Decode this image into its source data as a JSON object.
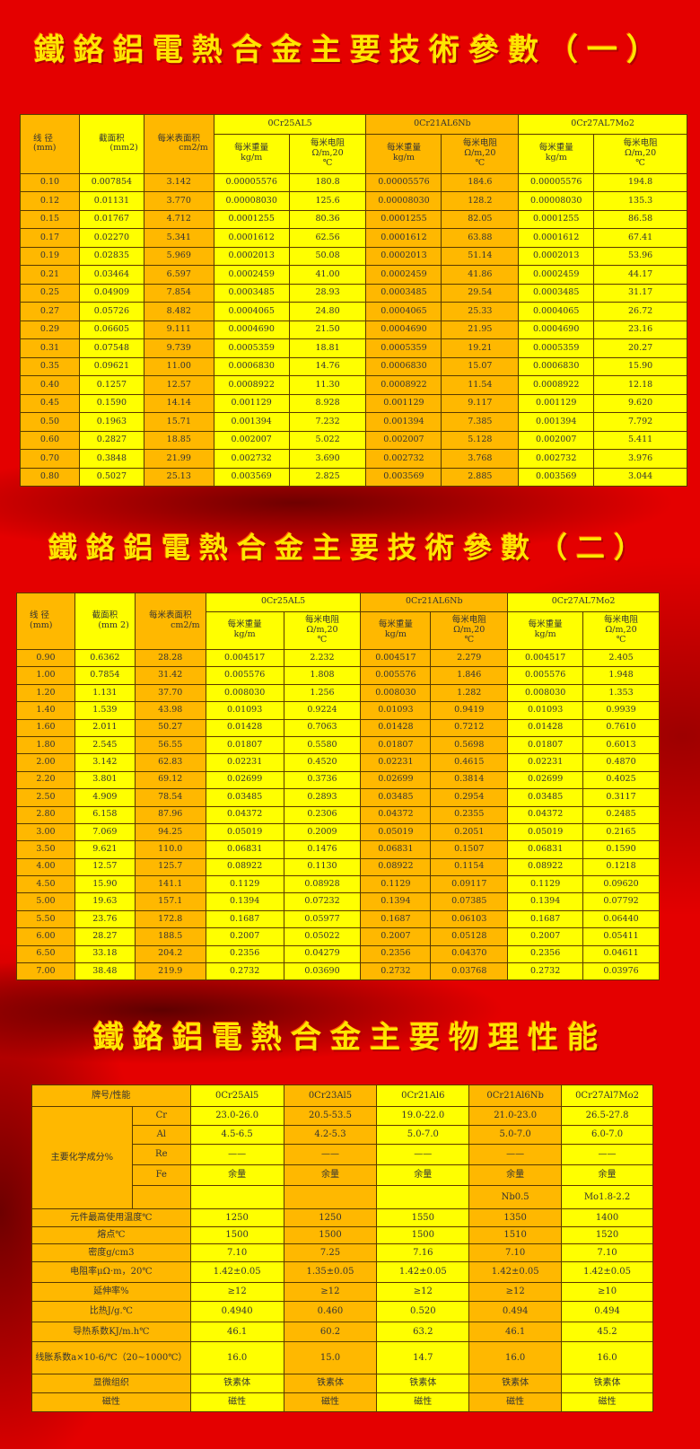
{
  "titles": [
    "鐵鉻鋁電熱合金主要技術參數（一）",
    "鐵鉻鋁電熱合金主要技術參數（二）",
    "鐵鉻鋁電熱合金主要物理性能"
  ],
  "colors": {
    "background": "#e40000",
    "title": "#ffe600",
    "cell_orange": "#ffb800",
    "cell_yellow": "#ffff00"
  },
  "table1": {
    "headers": {
      "diameter": "线 径",
      "diameter_unit": "(mm)",
      "area": "截面积",
      "area_unit": "(mm2)",
      "surface": "每米表面积",
      "surface_unit": "cm2/m",
      "alloys": [
        "0Cr25AL5",
        "0Cr21AL6Nb",
        "0Cr27AL7Mo2"
      ],
      "weight": "每米重量",
      "weight_unit": "kg/m",
      "resist": "每米电阻",
      "resist_unit": "Ω/m,20",
      "resist_unit2": "℃"
    },
    "rows": [
      [
        "0.10",
        "0.007854",
        "3.142",
        "0.00005576",
        "180.8",
        "0.00005576",
        "184.6",
        "0.00005576",
        "194.8"
      ],
      [
        "0.12",
        "0.01131",
        "3.770",
        "0.00008030",
        "125.6",
        "0.00008030",
        "128.2",
        "0.00008030",
        "135.3"
      ],
      [
        "0.15",
        "0.01767",
        "4.712",
        "0.0001255",
        "80.36",
        "0.0001255",
        "82.05",
        "0.0001255",
        "86.58"
      ],
      [
        "0.17",
        "0.02270",
        "5.341",
        "0.0001612",
        "62.56",
        "0.0001612",
        "63.88",
        "0.0001612",
        "67.41"
      ],
      [
        "0.19",
        "0.02835",
        "5.969",
        "0.0002013",
        "50.08",
        "0.0002013",
        "51.14",
        "0.0002013",
        "53.96"
      ],
      [
        "0.21",
        "0.03464",
        "6.597",
        "0.0002459",
        "41.00",
        "0.0002459",
        "41.86",
        "0.0002459",
        "44.17"
      ],
      [
        "0.25",
        "0.04909",
        "7.854",
        "0.0003485",
        "28.93",
        "0.0003485",
        "29.54",
        "0.0003485",
        "31.17"
      ],
      [
        "0.27",
        "0.05726",
        "8.482",
        "0.0004065",
        "24.80",
        "0.0004065",
        "25.33",
        "0.0004065",
        "26.72"
      ],
      [
        "0.29",
        "0.06605",
        "9.111",
        "0.0004690",
        "21.50",
        "0.0004690",
        "21.95",
        "0.0004690",
        "23.16"
      ],
      [
        "0.31",
        "0.07548",
        "9.739",
        "0.0005359",
        "18.81",
        "0.0005359",
        "19.21",
        "0.0005359",
        "20.27"
      ],
      [
        "0.35",
        "0.09621",
        "11.00",
        "0.0006830",
        "14.76",
        "0.0006830",
        "15.07",
        "0.0006830",
        "15.90"
      ],
      [
        "0.40",
        "0.1257",
        "12.57",
        "0.0008922",
        "11.30",
        "0.0008922",
        "11.54",
        "0.0008922",
        "12.18"
      ],
      [
        "0.45",
        "0.1590",
        "14.14",
        "0.001129",
        "8.928",
        "0.001129",
        "9.117",
        "0.001129",
        "9.620"
      ],
      [
        "0.50",
        "0.1963",
        "15.71",
        "0.001394",
        "7.232",
        "0.001394",
        "7.385",
        "0.001394",
        "7.792"
      ],
      [
        "0.60",
        "0.2827",
        "18.85",
        "0.002007",
        "5.022",
        "0.002007",
        "5.128",
        "0.002007",
        "5.411"
      ],
      [
        "0.70",
        "0.3848",
        "21.99",
        "0.002732",
        "3.690",
        "0.002732",
        "3.768",
        "0.002732",
        "3.976"
      ],
      [
        "0.80",
        "0.5027",
        "25.13",
        "0.003569",
        "2.825",
        "0.003569",
        "2.885",
        "0.003569",
        "3.044"
      ]
    ]
  },
  "table2": {
    "headers": {
      "diameter": "线 径",
      "diameter_unit": "(mm)",
      "area": "截面积",
      "area_unit": "(mm 2)",
      "surface": "每米表面积",
      "surface_unit": "cm2/m",
      "alloys": [
        "0Cr25AL5",
        "0Cr21AL6Nb",
        "0Cr27AL7Mo2"
      ],
      "weight": "每米重量",
      "weight_unit": "kg/m",
      "resist": "每米电阻",
      "resist_unit": "Ω/m,20",
      "resist_unit2": "℃"
    },
    "rows": [
      [
        "0.90",
        "0.6362",
        "28.28",
        "0.004517",
        "2.232",
        "0.004517",
        "2.279",
        "0.004517",
        "2.405"
      ],
      [
        "1.00",
        "0.7854",
        "31.42",
        "0.005576",
        "1.808",
        "0.005576",
        "1.846",
        "0.005576",
        "1.948"
      ],
      [
        "1.20",
        "1.131",
        "37.70",
        "0.008030",
        "1.256",
        "0.008030",
        "1.282",
        "0.008030",
        "1.353"
      ],
      [
        "1.40",
        "1.539",
        "43.98",
        "0.01093",
        "0.9224",
        "0.01093",
        "0.9419",
        "0.01093",
        "0.9939"
      ],
      [
        "1.60",
        "2.011",
        "50.27",
        "0.01428",
        "0.7063",
        "0.01428",
        "0.7212",
        "0.01428",
        "0.7610"
      ],
      [
        "1.80",
        "2.545",
        "56.55",
        "0.01807",
        "0.5580",
        "0.01807",
        "0.5698",
        "0.01807",
        "0.6013"
      ],
      [
        "2.00",
        "3.142",
        "62.83",
        "0.02231",
        "0.4520",
        "0.02231",
        "0.4615",
        "0.02231",
        "0.4870"
      ],
      [
        "2.20",
        "3.801",
        "69.12",
        "0.02699",
        "0.3736",
        "0.02699",
        "0.3814",
        "0.02699",
        "0.4025"
      ],
      [
        "2.50",
        "4.909",
        "78.54",
        "0.03485",
        "0.2893",
        "0.03485",
        "0.2954",
        "0.03485",
        "0.3117"
      ],
      [
        "2.80",
        "6.158",
        "87.96",
        "0.04372",
        "0.2306",
        "0.04372",
        "0.2355",
        "0.04372",
        "0.2485"
      ],
      [
        "3.00",
        "7.069",
        "94.25",
        "0.05019",
        "0.2009",
        "0.05019",
        "0.2051",
        "0.05019",
        "0.2165"
      ],
      [
        "3.50",
        "9.621",
        "110.0",
        "0.06831",
        "0.1476",
        "0.06831",
        "0.1507",
        "0.06831",
        "0.1590"
      ],
      [
        "4.00",
        "12.57",
        "125.7",
        "0.08922",
        "0.1130",
        "0.08922",
        "0.1154",
        "0.08922",
        "0.1218"
      ],
      [
        "4.50",
        "15.90",
        "141.1",
        "0.1129",
        "0.08928",
        "0.1129",
        "0.09117",
        "0.1129",
        "0.09620"
      ],
      [
        "5.00",
        "19.63",
        "157.1",
        "0.1394",
        "0.07232",
        "0.1394",
        "0.07385",
        "0.1394",
        "0.07792"
      ],
      [
        "5.50",
        "23.76",
        "172.8",
        "0.1687",
        "0.05977",
        "0.1687",
        "0.06103",
        "0.1687",
        "0.06440"
      ],
      [
        "6.00",
        "28.27",
        "188.5",
        "0.2007",
        "0.05022",
        "0.2007",
        "0.05128",
        "0.2007",
        "0.05411"
      ],
      [
        "6.50",
        "33.18",
        "204.2",
        "0.2356",
        "0.04279",
        "0.2356",
        "0.04370",
        "0.2356",
        "0.04611"
      ],
      [
        "7.00",
        "38.48",
        "219.9",
        "0.2732",
        "0.03690",
        "0.2732",
        "0.03768",
        "0.2732",
        "0.03976"
      ]
    ]
  },
  "table3": {
    "header": "牌号/性能",
    "grades": [
      "0Cr25Al5",
      "0Cr23Al5",
      "0Cr21Al6",
      "0Cr21Al6Nb",
      "0Cr27Al7Mo2"
    ],
    "composition_label": "主要化学成分%",
    "composition": [
      {
        "element": "Cr",
        "values": [
          "23.0-26.0",
          "20.5-53.5",
          "19.0-22.0",
          "21.0-23.0",
          "26.5-27.8"
        ]
      },
      {
        "element": "Al",
        "values": [
          "4.5-6.5",
          "4.2-5.3",
          "5.0-7.0",
          "5.0-7.0",
          "6.0-7.0"
        ]
      },
      {
        "element": "Re",
        "values": [
          "——",
          "——",
          "——",
          "——",
          "——"
        ]
      },
      {
        "element": "Fe",
        "values": [
          "余量",
          "余量",
          "余量",
          "余量",
          "余量"
        ]
      },
      {
        "element": "",
        "values": [
          "",
          "",
          "",
          "Nb0.5",
          "Mo1.8-2.2"
        ]
      }
    ],
    "properties": [
      {
        "label": "元件最高使用温度℃",
        "values": [
          "1250",
          "1250",
          "1550",
          "1350",
          "1400"
        ]
      },
      {
        "label": "熔点℃",
        "values": [
          "1500",
          "1500",
          "1500",
          "1510",
          "1520"
        ]
      },
      {
        "label": "密度g/cm3",
        "values": [
          "7.10",
          "7.25",
          "7.16",
          "7.10",
          "7.10"
        ]
      },
      {
        "label": "电阻率μΩ·m，20℃",
        "values": [
          "1.42±0.05",
          "1.35±0.05",
          "1.42±0.05",
          "1.42±0.05",
          "1.42±0.05"
        ]
      },
      {
        "label": "延伸率%",
        "values": [
          "≥12",
          "≥12",
          "≥12",
          "≥12",
          "≥10"
        ]
      },
      {
        "label": "比热J/g.℃",
        "values": [
          "0.4940",
          "0.460",
          "0.520",
          "0.494",
          "0.494"
        ]
      },
      {
        "label": "导热系数KJ/m.h℃",
        "values": [
          "46.1",
          "60.2",
          "63.2",
          "46.1",
          "45.2"
        ]
      },
      {
        "label": "线胀系数a×10-6/℃（20~1000℃）",
        "values": [
          "16.0",
          "15.0",
          "14.7",
          "16.0",
          "16.0"
        ]
      },
      {
        "label": "显微组织",
        "values": [
          "铁素体",
          "铁素体",
          "铁素体",
          "铁素体",
          "铁素体"
        ]
      },
      {
        "label": "磁性",
        "values": [
          "磁性",
          "磁性",
          "磁性",
          "磁性",
          "磁性"
        ]
      }
    ]
  }
}
